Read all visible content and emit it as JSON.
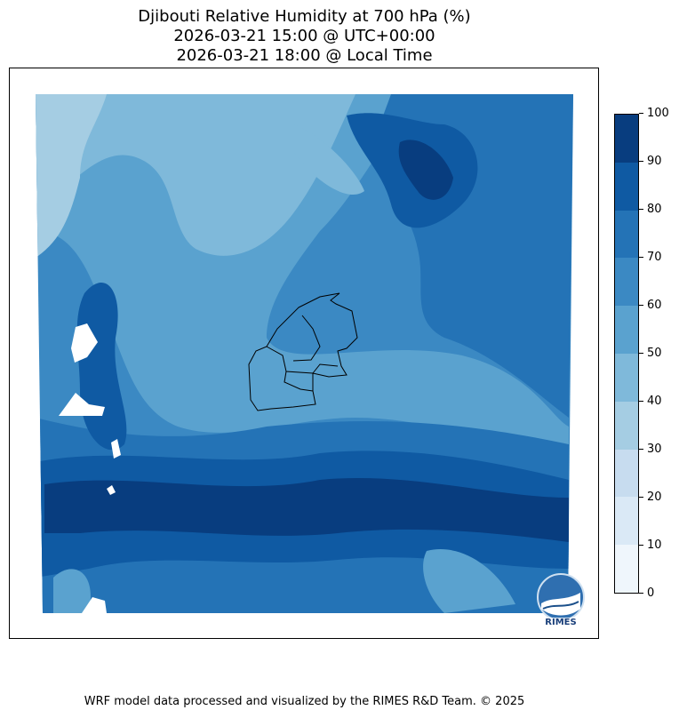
{
  "title": {
    "line1": "Djibouti Relative Humidity at 700 hPa (%)",
    "line2": "2026-03-21 15:00 @ UTC+00:00",
    "line3": "2026-03-21 18:00 @ Local Time"
  },
  "colorbar": {
    "ticks": [
      "0",
      "10",
      "20",
      "30",
      "40",
      "50",
      "60",
      "70",
      "80",
      "90",
      "100"
    ],
    "colors": [
      "#eff6fc",
      "#dae9f6",
      "#c7dcef",
      "#a5cde3",
      "#7fb9da",
      "#5aa2cf",
      "#3b89c3",
      "#2473b6",
      "#0f5aa3",
      "#083d7f"
    ]
  },
  "logo": {
    "text": "RIMES"
  },
  "footer": "WRF model data processed and visualized by the RIMES R&D Team. © 2025"
}
